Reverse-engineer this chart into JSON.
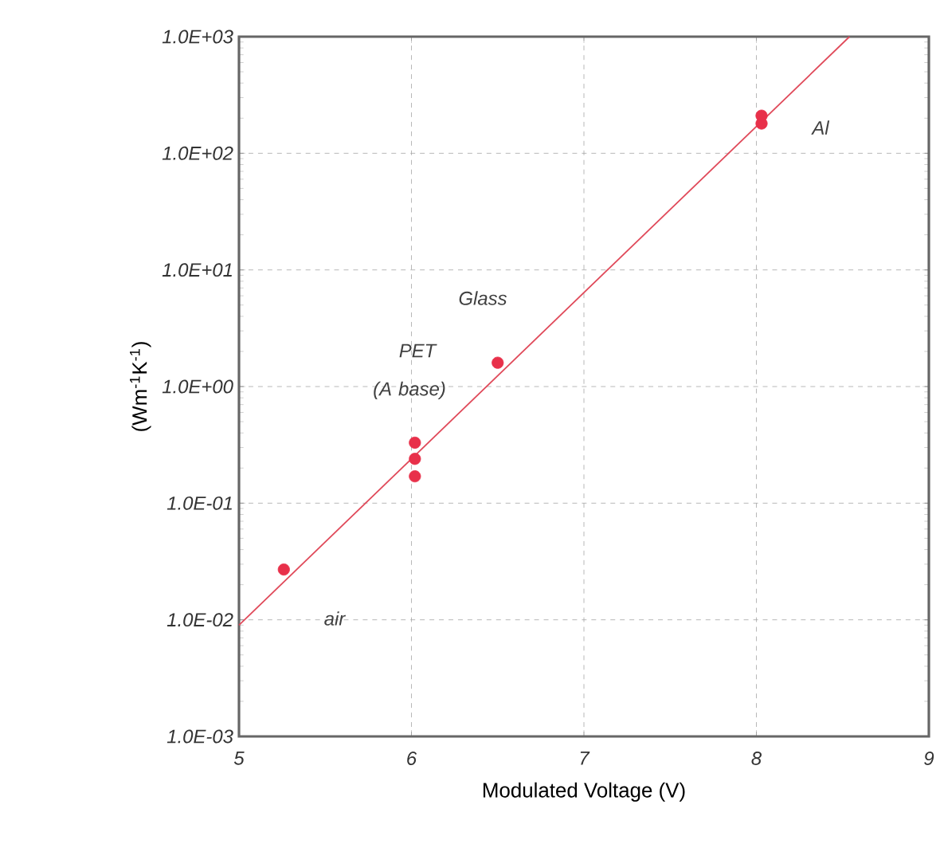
{
  "chart_data": {
    "type": "scatter",
    "xlabel": "Modulated Voltage (V)",
    "ylabel": "(Wm$^{-1}$K$^{-1}$)",
    "log": "y",
    "grid": true,
    "marker": "circle",
    "xlim": [
      5,
      9
    ],
    "ylim": [
      0.001,
      1000
    ],
    "xticks": [
      5,
      6,
      7,
      8,
      9
    ],
    "yticks": [
      {
        "value": 0.001,
        "label": "1.0E-03"
      },
      {
        "value": 0.01,
        "label": "1.0E-02"
      },
      {
        "value": 0.1,
        "label": "1.0E-01"
      },
      {
        "value": 1,
        "label": "1.0E+00"
      },
      {
        "value": 10,
        "label": "1.0E+01"
      },
      {
        "value": 100,
        "label": "1.0E+02"
      },
      {
        "value": 1000,
        "label": "1.0E+03"
      }
    ],
    "series": [
      {
        "color": "#e8304a",
        "x": [
          5.26,
          6.02,
          6.02,
          6.02,
          6.5,
          8.03,
          8.03
        ],
        "values": [
          0.027,
          0.33,
          0.24,
          0.17,
          1.6,
          180,
          210
        ]
      },
      {
        "type": "line",
        "color": "#e04a5a",
        "marker": "none",
        "x": [
          5,
          8.54
        ],
        "values": [
          0.009,
          1000
        ]
      }
    ],
    "annotations": [
      "air",
      "PET",
      "(A base)",
      "Glass",
      "Al"
    ]
  }
}
